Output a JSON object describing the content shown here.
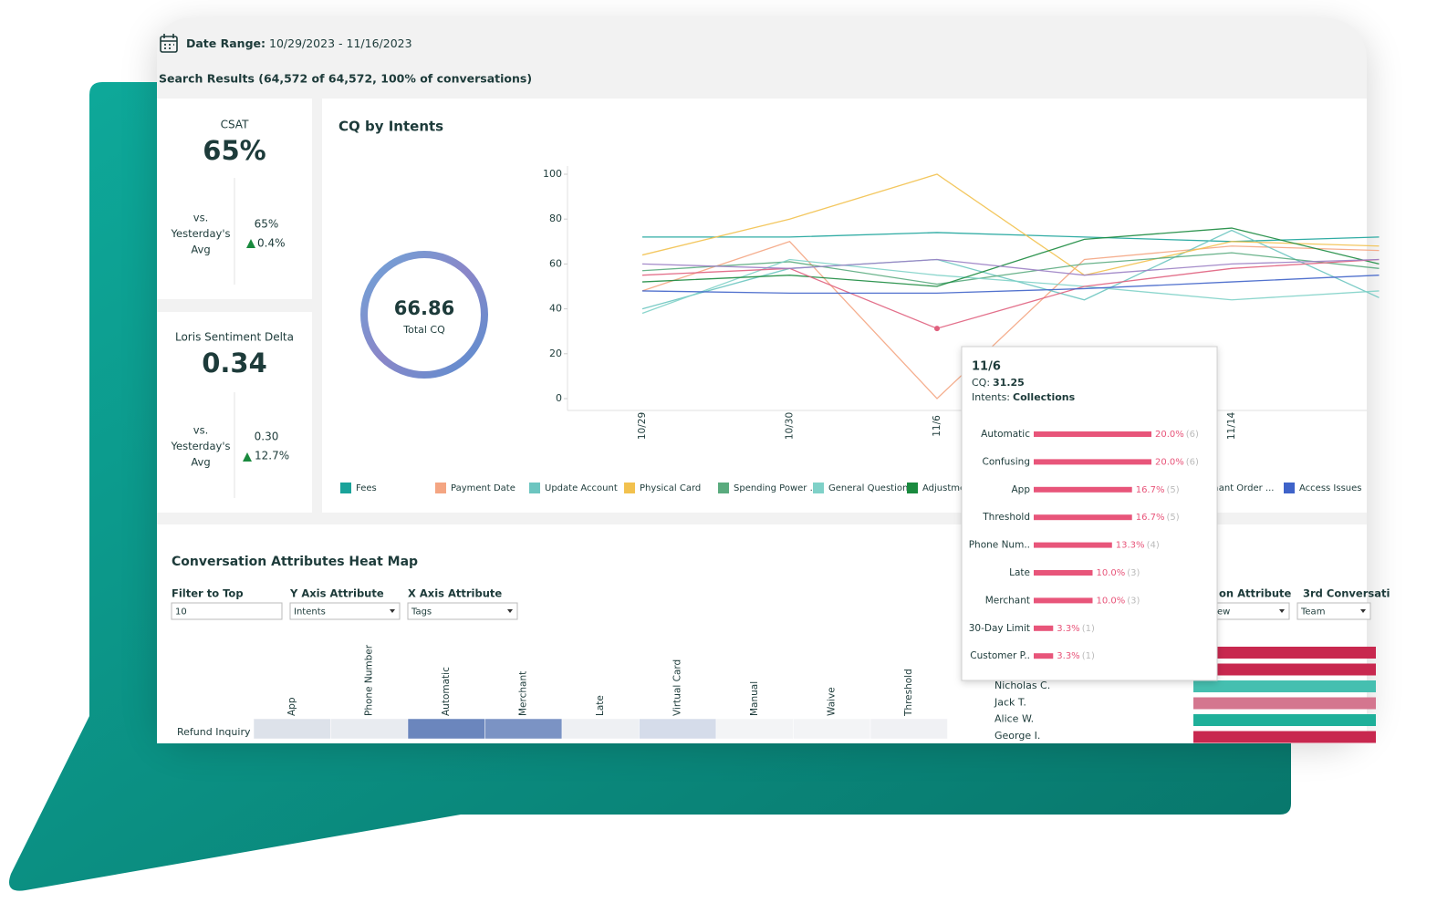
{
  "header": {
    "date_range_label": "Date Range:",
    "date_range": "10/29/2023 - 11/16/2023",
    "search_results": "Search Results (64,572 of 64,572, 100% of conversations)"
  },
  "kpis": [
    {
      "title": "CSAT",
      "value": "65%",
      "compare_label": [
        "vs.",
        "Yesterday's",
        "Avg"
      ],
      "compare_value": "65%",
      "change": "0.4%"
    },
    {
      "title": "Loris Sentiment Delta",
      "value": "0.34",
      "compare_label": [
        "vs.",
        "Yesterday's",
        "Avg"
      ],
      "compare_value": "0.30",
      "change": "12.7%"
    }
  ],
  "cq_summary": {
    "value": "66.86",
    "label": "Total CQ"
  },
  "chart_data": {
    "type": "line",
    "title": "CQ by Intents",
    "categories": [
      "10/29",
      "10/30",
      "11/6",
      null,
      "11/14",
      null
    ],
    "ylim": [
      0,
      100
    ],
    "yticks": [
      0,
      20,
      40,
      60,
      80,
      100
    ],
    "series": [
      {
        "name": "Fees",
        "color": "#1aa39a",
        "values": [
          72,
          72,
          74,
          72,
          70,
          72
        ]
      },
      {
        "name": "Payment Date",
        "color": "#f4a582",
        "values": [
          48,
          70,
          0,
          62,
          68,
          66
        ]
      },
      {
        "name": "Update Account",
        "color": "#6cc5c0",
        "values": [
          40,
          58,
          62,
          44,
          75,
          45
        ]
      },
      {
        "name": "Physical Card",
        "color": "#f2c14e",
        "values": [
          64,
          80,
          100,
          55,
          70,
          68
        ]
      },
      {
        "name": "Spending Power ...",
        "color": "#5aab7e",
        "values": [
          57,
          61,
          51,
          60,
          65,
          58
        ]
      },
      {
        "name": "General Questions",
        "color": "#7fd1c8",
        "values": [
          38,
          62,
          55,
          50,
          44,
          48
        ]
      },
      {
        "name": "Adjustme",
        "color": "#1a8a3e",
        "values": [
          52,
          55,
          50,
          71,
          76,
          60
        ]
      },
      {
        "name": "Collections",
        "color": "#e0607e",
        "values": [
          55,
          58,
          31.25,
          50,
          58,
          62
        ]
      },
      {
        "name": "rchant Order ...",
        "color": "#9b7fc4",
        "values": [
          60,
          58,
          62,
          55,
          60,
          62
        ]
      },
      {
        "name": "Access Issues",
        "color": "#3f63c9",
        "values": [
          48,
          47,
          47,
          49,
          52,
          55
        ]
      }
    ]
  },
  "tooltip": {
    "date": "11/6",
    "cq_label": "CQ:",
    "cq": "31.25",
    "intents_label": "Intents:",
    "intent": "Collections",
    "chart": {
      "type": "bar",
      "color": "#e8557a",
      "categories": [
        "Automatic",
        "Confusing",
        "App",
        "Threshold",
        "Phone Num..",
        "Late",
        "Merchant",
        "30-Day Limit",
        "Customer P.."
      ],
      "values": [
        20,
        20,
        16.7,
        16.7,
        13.3,
        10,
        10,
        3.3,
        3.3
      ],
      "value_labels": [
        "20.0%",
        "20.0%",
        "16.7%",
        "16.7%",
        "13.3%",
        "10.0%",
        "10.0%",
        "3.3%",
        "3.3%"
      ],
      "count_labels": [
        "(6)",
        "(6)",
        "(5)",
        "(5)",
        "(4)",
        "(3)",
        "(3)",
        "(1)",
        "(1)"
      ]
    }
  },
  "heatmap": {
    "title": "Conversation Attributes Heat Map",
    "controls": [
      {
        "label": "Filter to Top",
        "value": "10",
        "kind": "input"
      },
      {
        "label": "Y Axis Attribute",
        "value": "Intents",
        "kind": "select"
      },
      {
        "label": "X Axis Attribute",
        "value": "Tags",
        "kind": "select"
      }
    ],
    "columns": [
      "App",
      "Phone Number",
      "Automatic",
      "Merchant",
      "Late",
      "Virtual Card",
      "Manual",
      "Waive",
      "Threshold"
    ],
    "rows": [
      {
        "label": "Refund Inquiry",
        "colors": [
          "#dde2ea",
          "#e8ebf0",
          "#6b86bd",
          "#7b93c4",
          "#eef0f3",
          "#d5dcea",
          "#f3f4f6",
          "#f3f4f6",
          "#f0f1f4"
        ]
      }
    ]
  },
  "right_panel": {
    "controls": [
      {
        "label": "on Attribute",
        "value": "ew"
      },
      {
        "label": "3rd Conversati",
        "value": "Team"
      }
    ],
    "people": [
      "Nicholas C.",
      "Jack T.",
      "Alice W.",
      "George I."
    ],
    "bar_colors": [
      "#c8284f",
      "#c8284f",
      "#45bfb0",
      "#d4768f",
      "#1fb09a",
      "#c8284f"
    ]
  }
}
